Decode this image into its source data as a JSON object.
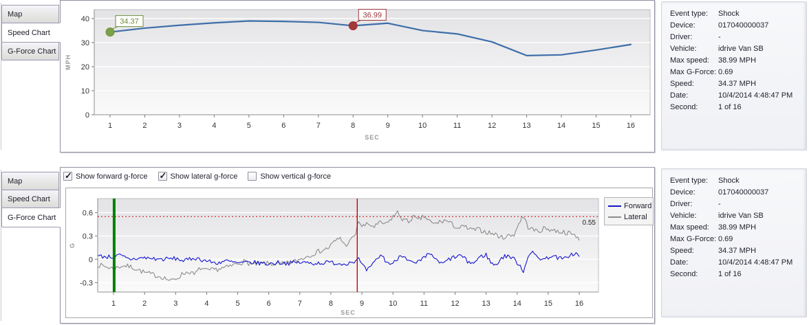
{
  "tab_labels": [
    "Map",
    "Speed Chart",
    "G-Force Chart"
  ],
  "speed_panel": {
    "active_tab": "Speed Chart"
  },
  "gforce_panel": {
    "active_tab": "G-Force Chart",
    "checkboxes": [
      {
        "label": "Show forward g-force",
        "checked": true
      },
      {
        "label": "Show lateral g-force",
        "checked": true
      },
      {
        "label": "Show vertical g-force",
        "checked": false
      }
    ]
  },
  "event_info": {
    "rows": [
      {
        "label": "Event type:",
        "value": "Shock"
      },
      {
        "label": "Device:",
        "value": "017040000037"
      },
      {
        "label": "Driver:",
        "value": "-"
      },
      {
        "label": "Vehicle:",
        "value": "idrive Van SB"
      },
      {
        "label": "Max speed:",
        "value": "38.99 MPH"
      },
      {
        "label": "Max G-Force:",
        "value": "0.69"
      },
      {
        "label": "Speed:",
        "value": "34.37 MPH"
      },
      {
        "label": "Date:",
        "value": "10/4/2014 4:48:47 PM"
      },
      {
        "label": "Second:",
        "value": "1 of 16"
      }
    ]
  },
  "chart_data": [
    {
      "type": "line",
      "title": "Speed Chart",
      "xlabel": "SEC",
      "ylabel": "MPH",
      "x": [
        1,
        2,
        3,
        4,
        5,
        6,
        7,
        8,
        9,
        10,
        11,
        12,
        13,
        14,
        15,
        16
      ],
      "values": [
        34.37,
        36.0,
        37.2,
        38.2,
        38.99,
        38.8,
        38.4,
        36.99,
        38.05,
        35.0,
        33.6,
        30.3,
        24.6,
        24.9,
        26.9,
        29.2
      ],
      "xticks": [
        1,
        2,
        3,
        4,
        5,
        6,
        7,
        8,
        9,
        10,
        11,
        12,
        13,
        14,
        15,
        16
      ],
      "yticks": [
        0,
        10,
        20,
        30,
        40
      ],
      "xlim": [
        0.544,
        16.556
      ],
      "ylim": [
        0,
        43.7
      ],
      "grid": true,
      "legend": false,
      "line_color": "#3d6ea9",
      "markers": [
        {
          "x": 1,
          "value": 34.37,
          "label": "34.37",
          "color": "#6d8c36",
          "fill": "#7da045"
        },
        {
          "x": 8,
          "value": 36.99,
          "label": "36.99",
          "color": "#9a3338",
          "fill": "#a33936"
        }
      ]
    },
    {
      "type": "line",
      "title": "G-Force Chart",
      "xlabel": "SEC",
      "ylabel": "G",
      "xticks": [
        1,
        2,
        3,
        4,
        5,
        6,
        7,
        8,
        9,
        10,
        11,
        12,
        13,
        14,
        15,
        16
      ],
      "yticks": [
        -0.3,
        0,
        0.3,
        0.6
      ],
      "xlim": [
        0.49,
        16.62
      ],
      "ylim": [
        -0.42,
        0.78
      ],
      "grid": true,
      "legend_position": "right",
      "threshold": {
        "value": 0.55,
        "label": "0.55",
        "color": "#cc0000"
      },
      "event_markers": [
        {
          "x": 1.02,
          "color": "#008000",
          "width": 4
        },
        {
          "x": 8.85,
          "color": "#cc0000",
          "width": 1.4
        }
      ],
      "noise_seed": 7,
      "sample_step": 0.05,
      "series": [
        {
          "name": "Forward",
          "color": "#1414cc",
          "noise": 0.028,
          "keypoints": [
            [
              0.5,
              0.04
            ],
            [
              1,
              0.03
            ],
            [
              1.2,
              0.05
            ],
            [
              1.5,
              0
            ],
            [
              2,
              0.02
            ],
            [
              2.5,
              0
            ],
            [
              3,
              0.01
            ],
            [
              3.3,
              -0.02
            ],
            [
              3.6,
              0.02
            ],
            [
              4,
              -0.02
            ],
            [
              4.3,
              -0.05
            ],
            [
              4.6,
              -0.02
            ],
            [
              5,
              -0.05
            ],
            [
              5.5,
              -0.04
            ],
            [
              6,
              -0.06
            ],
            [
              6.3,
              -0.04
            ],
            [
              6.6,
              -0.05
            ],
            [
              7,
              -0.04
            ],
            [
              7.5,
              -0.05
            ],
            [
              8,
              -0.04
            ],
            [
              8.4,
              -0.06
            ],
            [
              8.7,
              -0.03
            ],
            [
              8.9,
              0
            ],
            [
              9.05,
              -0.1
            ],
            [
              9.15,
              -0.14
            ],
            [
              9.3,
              -0.1
            ],
            [
              9.5,
              0.02
            ],
            [
              9.65,
              0.05
            ],
            [
              9.8,
              -0.04
            ],
            [
              10,
              -0.06
            ],
            [
              10.2,
              0.04
            ],
            [
              10.35,
              0.06
            ],
            [
              10.5,
              -0.02
            ],
            [
              10.7,
              -0.06
            ],
            [
              10.9,
              -0.02
            ],
            [
              11.1,
              0.05
            ],
            [
              11.25,
              0.07
            ],
            [
              11.4,
              -0.02
            ],
            [
              11.6,
              -0.06
            ],
            [
              11.8,
              0
            ],
            [
              12,
              0.03
            ],
            [
              12.2,
              0.05
            ],
            [
              12.4,
              -0.03
            ],
            [
              12.6,
              -0.05
            ],
            [
              12.8,
              0.03
            ],
            [
              13,
              0.06
            ],
            [
              13.15,
              -0.04
            ],
            [
              13.3,
              -0.08
            ],
            [
              13.5,
              0.02
            ],
            [
              13.7,
              0.05
            ],
            [
              13.9,
              0
            ],
            [
              14.1,
              -0.08
            ],
            [
              14.2,
              -0.16
            ],
            [
              14.35,
              0.05
            ],
            [
              14.5,
              0.08
            ],
            [
              14.7,
              0.02
            ],
            [
              14.9,
              0
            ],
            [
              15.1,
              0.05
            ],
            [
              15.3,
              0.02
            ],
            [
              15.5,
              0
            ],
            [
              15.7,
              0.06
            ],
            [
              15.9,
              0.07
            ],
            [
              16,
              0.04
            ]
          ]
        },
        {
          "name": "Lateral",
          "color": "#8c8c8c",
          "noise": 0.032,
          "keypoints": [
            [
              0.5,
              -0.07
            ],
            [
              1,
              -0.12
            ],
            [
              1.3,
              -0.08
            ],
            [
              1.6,
              -0.1
            ],
            [
              2,
              -0.17
            ],
            [
              2.3,
              -0.2
            ],
            [
              2.6,
              -0.23
            ],
            [
              2.85,
              -0.28
            ],
            [
              3.05,
              -0.24
            ],
            [
              3.25,
              -0.18
            ],
            [
              3.45,
              -0.16
            ],
            [
              3.6,
              -0.2
            ],
            [
              3.8,
              -0.11
            ],
            [
              4,
              -0.15
            ],
            [
              4.3,
              -0.13
            ],
            [
              4.7,
              -0.1
            ],
            [
              5,
              -0.05
            ],
            [
              5.2,
              -0.03
            ],
            [
              5.5,
              -0.07
            ],
            [
              5.8,
              -0.05
            ],
            [
              6.1,
              -0.06
            ],
            [
              6.5,
              -0.06
            ],
            [
              6.8,
              -0.03
            ],
            [
              7,
              0
            ],
            [
              7.3,
              0.05
            ],
            [
              7.6,
              0.1
            ],
            [
              7.9,
              0.14
            ],
            [
              8.1,
              0.22
            ],
            [
              8.3,
              0.28
            ],
            [
              8.45,
              0.18
            ],
            [
              8.6,
              0.22
            ],
            [
              8.8,
              0.33
            ],
            [
              8.9,
              0.5
            ],
            [
              9,
              0.42
            ],
            [
              9.2,
              0.45
            ],
            [
              9.4,
              0.42
            ],
            [
              9.6,
              0.47
            ],
            [
              9.8,
              0.45
            ],
            [
              10,
              0.55
            ],
            [
              10.15,
              0.6
            ],
            [
              10.3,
              0.52
            ],
            [
              10.5,
              0.48
            ],
            [
              10.65,
              0.55
            ],
            [
              10.8,
              0.5
            ],
            [
              11,
              0.55
            ],
            [
              11.15,
              0.5
            ],
            [
              11.3,
              0.45
            ],
            [
              11.5,
              0.48
            ],
            [
              11.7,
              0.5
            ],
            [
              11.9,
              0.45
            ],
            [
              12.1,
              0.4
            ],
            [
              12.3,
              0.42
            ],
            [
              12.5,
              0.38
            ],
            [
              12.8,
              0.38
            ],
            [
              13,
              0.35
            ],
            [
              13.3,
              0.32
            ],
            [
              13.5,
              0.28
            ],
            [
              13.7,
              0.3
            ],
            [
              13.9,
              0.32
            ],
            [
              14.1,
              0.5
            ],
            [
              14.2,
              0.55
            ],
            [
              14.35,
              0.42
            ],
            [
              14.5,
              0.38
            ],
            [
              14.7,
              0.36
            ],
            [
              14.9,
              0.4
            ],
            [
              15.1,
              0.38
            ],
            [
              15.3,
              0.36
            ],
            [
              15.5,
              0.35
            ],
            [
              15.7,
              0.33
            ],
            [
              15.9,
              0.3
            ],
            [
              16,
              0.27
            ]
          ]
        }
      ]
    }
  ]
}
